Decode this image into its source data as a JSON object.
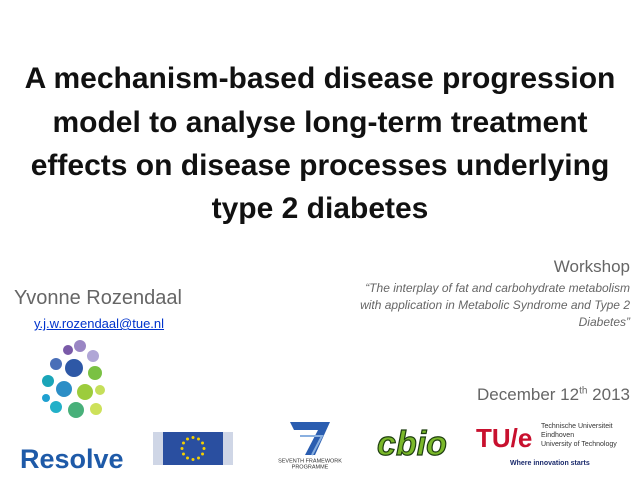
{
  "title": {
    "lines": [
      "A mechanism-based disease progression",
      "model to analyse long-term treatment",
      "effects on disease processes underlying",
      "type 2 diabetes"
    ]
  },
  "author": {
    "name": "Yvonne Rozendaal",
    "email": "y.j.w.rozendaal@tue.nl"
  },
  "event": {
    "label": "Workshop",
    "quote_lines": [
      "“The interplay of fat and carbohydrate metabolism",
      "with application in Metabolic Syndrome and Type 2",
      "Diabetes”"
    ]
  },
  "date": {
    "main": "December 12",
    "ordinal": "th",
    "year": "2013"
  },
  "logos": {
    "resolve": "Resolve",
    "fp7": [
      "SEVENTH FRAMEWORK",
      "PROGRAMME"
    ],
    "cbio": "cbio",
    "tue": {
      "mark": "TU/e",
      "lines": [
        "Technische Universiteit",
        "Eindhoven",
        "University of Technology"
      ],
      "slogan": "Where innovation starts"
    }
  }
}
